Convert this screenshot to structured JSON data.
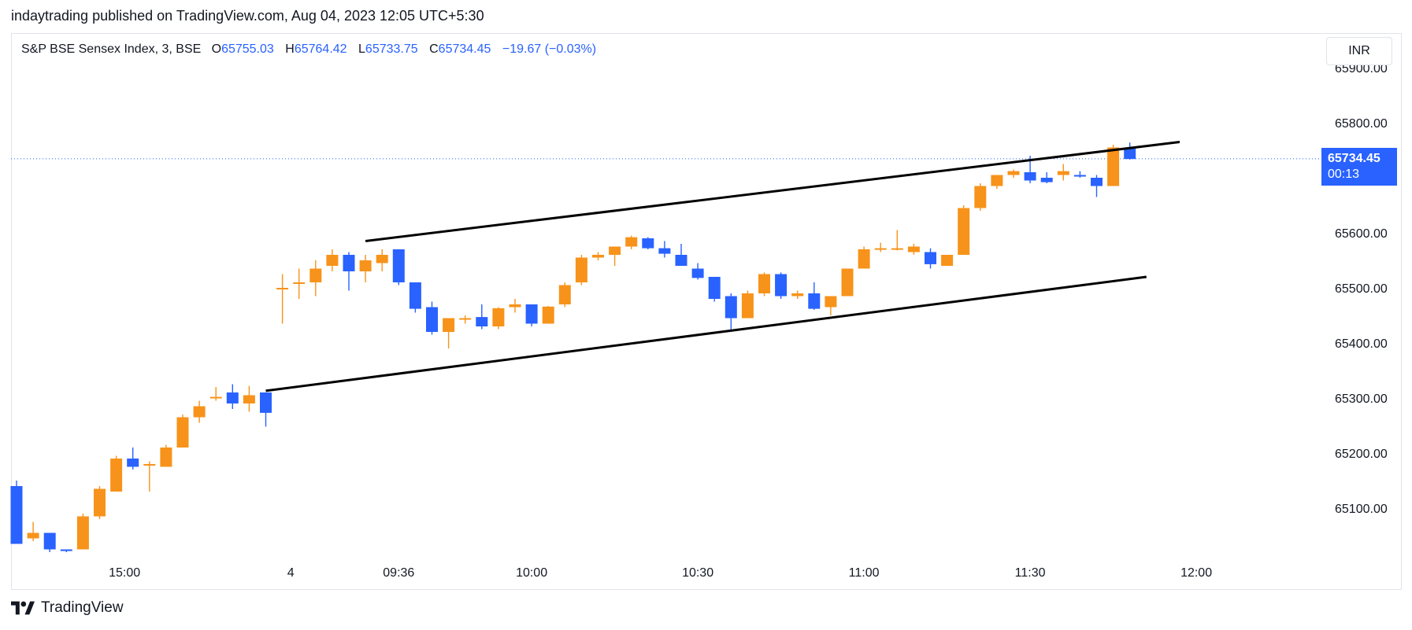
{
  "header": {
    "published_line": "indaytrading published on TradingView.com, Aug 04, 2023 12:05 UTC+5:30"
  },
  "legend": {
    "symbol": "S&P BSE Sensex Index, 3, BSE",
    "open_label": "O",
    "open": "65755.03",
    "high_label": "H",
    "high": "65764.42",
    "low_label": "L",
    "low": "65733.75",
    "close_label": "C",
    "close": "65734.45",
    "change": "−19.67 (−0.03%)"
  },
  "currency": "INR",
  "last_price": {
    "value": "65734.45",
    "countdown": "00:13"
  },
  "footer": {
    "brand": "TradingView"
  },
  "colors": {
    "up": "#f7931a",
    "down": "#2962ff",
    "trendline": "#000000",
    "last_price_line": "#2962ff"
  },
  "chart_data": {
    "type": "candlestick",
    "y_ticks": [
      "65900.00",
      "65800.00",
      "65600.00",
      "65500.00",
      "65400.00",
      "65300.00",
      "65200.00",
      "65100.00"
    ],
    "y_tick_values": [
      65900,
      65800,
      65600,
      65500,
      65400,
      65300,
      65200,
      65100
    ],
    "x_ticks": [
      "15:00",
      "4",
      "09:36",
      "10:00",
      "10:30",
      "11:00",
      "11:30",
      "12:00"
    ],
    "x_tick_bar_index": [
      6.5,
      16.5,
      23,
      31,
      41,
      51,
      61,
      71
    ],
    "candles": [
      {
        "o": 65140,
        "h": 65150,
        "l": 65035,
        "c": 65035
      },
      {
        "o": 65045,
        "h": 65075,
        "l": 65040,
        "c": 65055
      },
      {
        "o": 65055,
        "h": 65055,
        "l": 65020,
        "c": 65025
      },
      {
        "o": 65025,
        "h": 65025,
        "l": 65020,
        "c": 65022
      },
      {
        "o": 65025,
        "h": 65090,
        "l": 65025,
        "c": 65085
      },
      {
        "o": 65085,
        "h": 65140,
        "l": 65080,
        "c": 65135
      },
      {
        "o": 65130,
        "h": 65195,
        "l": 65130,
        "c": 65190
      },
      {
        "o": 65190,
        "h": 65210,
        "l": 65170,
        "c": 65175
      },
      {
        "o": 65178,
        "h": 65185,
        "l": 65130,
        "c": 65180
      },
      {
        "o": 65175,
        "h": 65215,
        "l": 65175,
        "c": 65210
      },
      {
        "o": 65210,
        "h": 65270,
        "l": 65210,
        "c": 65265
      },
      {
        "o": 65265,
        "h": 65295,
        "l": 65255,
        "c": 65285
      },
      {
        "o": 65300,
        "h": 65320,
        "l": 65295,
        "c": 65302
      },
      {
        "o": 65310,
        "h": 65325,
        "l": 65280,
        "c": 65290
      },
      {
        "o": 65290,
        "h": 65322,
        "l": 65275,
        "c": 65305
      },
      {
        "o": 65310,
        "h": 65310,
        "l": 65248,
        "c": 65273
      },
      {
        "o": 65500,
        "h": 65525,
        "l": 65435,
        "c": 65500
      },
      {
        "o": 65510,
        "h": 65535,
        "l": 65480,
        "c": 65510
      },
      {
        "o": 65510,
        "h": 65550,
        "l": 65485,
        "c": 65535
      },
      {
        "o": 65540,
        "h": 65570,
        "l": 65530,
        "c": 65560
      },
      {
        "o": 65560,
        "h": 65565,
        "l": 65495,
        "c": 65530
      },
      {
        "o": 65530,
        "h": 65560,
        "l": 65510,
        "c": 65550
      },
      {
        "o": 65545,
        "h": 65570,
        "l": 65530,
        "c": 65560
      },
      {
        "o": 65570,
        "h": 65570,
        "l": 65505,
        "c": 65510
      },
      {
        "o": 65510,
        "h": 65510,
        "l": 65455,
        "c": 65462
      },
      {
        "o": 65465,
        "h": 65475,
        "l": 65415,
        "c": 65420
      },
      {
        "o": 65420,
        "h": 65445,
        "l": 65390,
        "c": 65445
      },
      {
        "o": 65445,
        "h": 65450,
        "l": 65435,
        "c": 65445
      },
      {
        "o": 65447,
        "h": 65470,
        "l": 65425,
        "c": 65430
      },
      {
        "o": 65430,
        "h": 65465,
        "l": 65425,
        "c": 65463
      },
      {
        "o": 65465,
        "h": 65480,
        "l": 65455,
        "c": 65470
      },
      {
        "o": 65470,
        "h": 65470,
        "l": 65430,
        "c": 65435
      },
      {
        "o": 65435,
        "h": 65467,
        "l": 65435,
        "c": 65466
      },
      {
        "o": 65470,
        "h": 65510,
        "l": 65465,
        "c": 65505
      },
      {
        "o": 65510,
        "h": 65560,
        "l": 65505,
        "c": 65555
      },
      {
        "o": 65555,
        "h": 65565,
        "l": 65550,
        "c": 65560
      },
      {
        "o": 65560,
        "h": 65575,
        "l": 65540,
        "c": 65575
      },
      {
        "o": 65575,
        "h": 65595,
        "l": 65570,
        "c": 65592
      },
      {
        "o": 65590,
        "h": 65592,
        "l": 65570,
        "c": 65572
      },
      {
        "o": 65572,
        "h": 65585,
        "l": 65555,
        "c": 65562
      },
      {
        "o": 65560,
        "h": 65580,
        "l": 65540,
        "c": 65540
      },
      {
        "o": 65535,
        "h": 65545,
        "l": 65515,
        "c": 65518
      },
      {
        "o": 65520,
        "h": 65520,
        "l": 65475,
        "c": 65480
      },
      {
        "o": 65485,
        "h": 65490,
        "l": 65420,
        "c": 65445
      },
      {
        "o": 65445,
        "h": 65495,
        "l": 65445,
        "c": 65490
      },
      {
        "o": 65490,
        "h": 65528,
        "l": 65485,
        "c": 65525
      },
      {
        "o": 65525,
        "h": 65528,
        "l": 65480,
        "c": 65485
      },
      {
        "o": 65485,
        "h": 65495,
        "l": 65480,
        "c": 65490
      },
      {
        "o": 65490,
        "h": 65510,
        "l": 65460,
        "c": 65462
      },
      {
        "o": 65465,
        "h": 65485,
        "l": 65450,
        "c": 65485
      },
      {
        "o": 65485,
        "h": 65535,
        "l": 65485,
        "c": 65535
      },
      {
        "o": 65535,
        "h": 65575,
        "l": 65535,
        "c": 65570
      },
      {
        "o": 65570,
        "h": 65582,
        "l": 65565,
        "c": 65572
      },
      {
        "o": 65572,
        "h": 65605,
        "l": 65568,
        "c": 65572
      },
      {
        "o": 65565,
        "h": 65580,
        "l": 65560,
        "c": 65575
      },
      {
        "o": 65565,
        "h": 65572,
        "l": 65535,
        "c": 65543
      },
      {
        "o": 65540,
        "h": 65560,
        "l": 65540,
        "c": 65560
      },
      {
        "o": 65560,
        "h": 65650,
        "l": 65560,
        "c": 65645
      },
      {
        "o": 65645,
        "h": 65690,
        "l": 65640,
        "c": 65685
      },
      {
        "o": 65685,
        "h": 65705,
        "l": 65680,
        "c": 65705
      },
      {
        "o": 65705,
        "h": 65715,
        "l": 65700,
        "c": 65712
      },
      {
        "o": 65710,
        "h": 65740,
        "l": 65690,
        "c": 65695
      },
      {
        "o": 65700,
        "h": 65710,
        "l": 65690,
        "c": 65692
      },
      {
        "o": 65705,
        "h": 65725,
        "l": 65695,
        "c": 65712
      },
      {
        "o": 65705,
        "h": 65712,
        "l": 65700,
        "c": 65703
      },
      {
        "o": 65700,
        "h": 65705,
        "l": 65665,
        "c": 65685
      },
      {
        "o": 65685,
        "h": 65760,
        "l": 65685,
        "c": 65755
      },
      {
        "o": 65755,
        "h": 65764,
        "l": 65733,
        "c": 65734
      }
    ],
    "trendlines": [
      {
        "name": "upper",
        "from": {
          "bar": 21,
          "price": 65585
        },
        "to": {
          "bar": 70,
          "price": 65765
        }
      },
      {
        "name": "lower",
        "from": {
          "bar": 15,
          "price": 65313
        },
        "to": {
          "bar": 68,
          "price": 65520
        }
      }
    ],
    "last_price": 65734.45
  }
}
